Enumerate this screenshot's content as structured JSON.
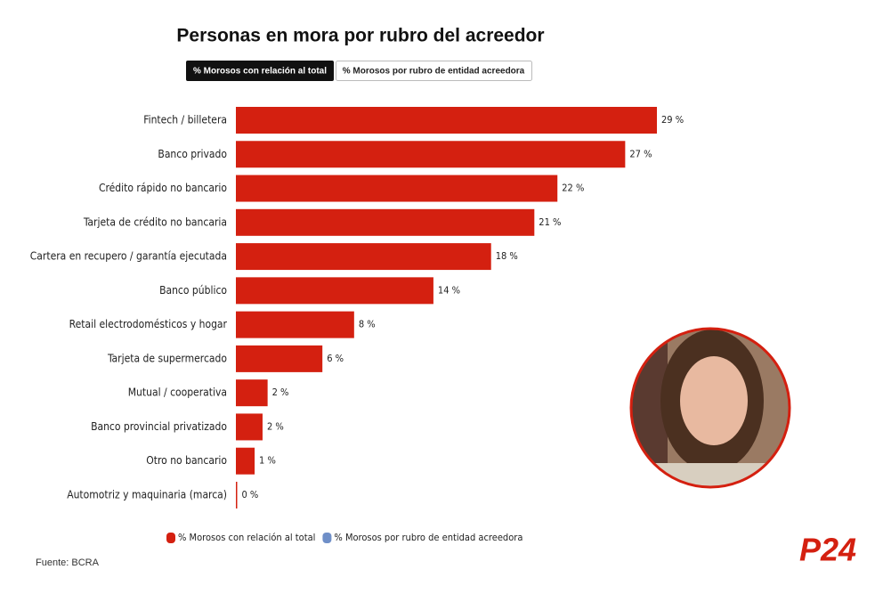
{
  "chart_data": {
    "type": "bar",
    "orientation": "horizontal",
    "title": "Personas en mora por rubro del acreedor",
    "categories": [
      "Fintech / billetera",
      "Banco privado",
      "Crédito rápido no bancario",
      "Tarjeta de crédito no bancaria",
      "Cartera en recupero / garantía ejecutada",
      "Banco público",
      "Retail electrodomésticos y hogar",
      "Tarjeta de supermercado",
      "Mutual / cooperativa",
      "Banco provincial privatizado",
      "Otro no bancario",
      "Automotriz y maquinaria (marca)"
    ],
    "series": [
      {
        "name": "% Morosos con relación al total",
        "color": "#d42010",
        "values": [
          29.2,
          27.0,
          22.3,
          20.7,
          17.7,
          13.7,
          8.2,
          6.0,
          2.2,
          1.85,
          1.3,
          0.06
        ],
        "value_labels": [
          "29 %",
          "27 %",
          "22 %",
          "21 %",
          "18 %",
          "14 %",
          "8 %",
          "6 %",
          "2 %",
          "2 %",
          "1 %",
          "0 %"
        ]
      },
      {
        "name": "% Morosos por rubro de entidad acreedora",
        "color": "#6f8fc8"
      }
    ],
    "source": "Fuente: BCRA",
    "logo": "P24"
  }
}
